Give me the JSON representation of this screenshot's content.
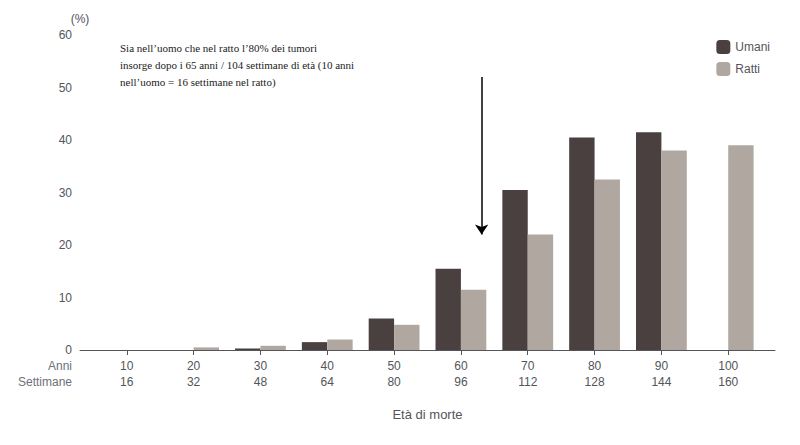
{
  "chart_data": {
    "type": "bar",
    "x": [
      10,
      20,
      30,
      40,
      50,
      60,
      70,
      80,
      90,
      100
    ],
    "series": [
      {
        "name": "Umani",
        "color": "#4a4040",
        "values": [
          0,
          0,
          0.3,
          1.5,
          6.0,
          15.5,
          30.5,
          40.5,
          41.5,
          0
        ]
      },
      {
        "name": "Ratti",
        "color": "#b0a8a0",
        "values": [
          0,
          0.5,
          0.8,
          2.0,
          4.8,
          11.5,
          22.0,
          32.5,
          38.0,
          39.0
        ]
      }
    ],
    "xlim": [
      3,
      107
    ],
    "xticks": [
      10,
      20,
      30,
      40,
      50,
      60,
      70,
      80,
      90,
      100
    ],
    "tick_label_rows": [
      {
        "name": "Anni",
        "labels": [
          "10",
          "20",
          "30",
          "40",
          "50",
          "60",
          "70",
          "80",
          "90",
          "100"
        ]
      },
      {
        "name": "Settimane",
        "labels": [
          "16",
          "32",
          "48",
          "64",
          "80",
          "96",
          "112",
          "128",
          "144",
          "160"
        ]
      }
    ],
    "ylim": [
      0,
      60
    ],
    "yticks": [
      0,
      10,
      20,
      30,
      40,
      50,
      60
    ],
    "xlabel": "Età di morte",
    "ylabel": "(%)",
    "annotation": "Sia nell’uomo che nel ratto l’80% dei tumori\ninsorge dopo i 65 anni / 104 settimane di età (10 anni\nnell’uomo = 16 settimane nel ratto)",
    "arrow": {
      "from": [
        65,
        52
      ],
      "to": [
        65,
        22
      ]
    },
    "legend": "upper right",
    "grid": false
  }
}
